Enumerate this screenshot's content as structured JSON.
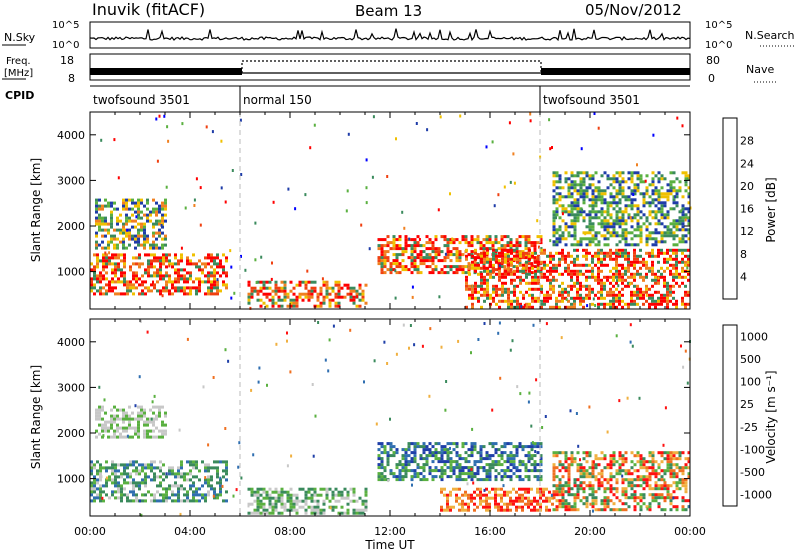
{
  "header": {
    "title": "Inuvik (fitACF)",
    "beam": "Beam 13",
    "date": "05/Nov/2012"
  },
  "aux_panels": {
    "nsky_label": "N.Sky",
    "nsky_ticks": [
      "10^5",
      "10^0"
    ],
    "nsearch_label": "N.Search",
    "nsearch_ticks": [
      "10^5",
      "10^0"
    ],
    "freq_label_1": "Freq.",
    "freq_label_2": "[MHz]",
    "freq_ticks": [
      "18",
      "8"
    ],
    "nave_label": "Nave",
    "nave_ticks": [
      "80",
      "0"
    ],
    "cpid_label": "CPID",
    "cpid_segments": [
      {
        "label": "twofsound 3501",
        "start_hour": 0,
        "end_hour": 6
      },
      {
        "label": "normal 150",
        "start_hour": 6,
        "end_hour": 18
      },
      {
        "label": "twofsound 3501",
        "start_hour": 18,
        "end_hour": 24
      }
    ]
  },
  "chart_data": [
    {
      "type": "heatmap",
      "panel": "power",
      "xlabel": "",
      "ylabel": "Slant Range [km]",
      "xlim": [
        0,
        24
      ],
      "ylim": [
        180,
        4500
      ],
      "yticks": [
        "1000",
        "2000",
        "3000",
        "4000"
      ],
      "colorbar_label": "Power [dB]",
      "colorbar_ticks": [
        "4",
        "8",
        "12",
        "16",
        "20",
        "24",
        "28"
      ],
      "colorbar_colors": [
        "#0000ff",
        "#1e3ca8",
        "#3a8a5c",
        "#5ab040",
        "#f0c000",
        "#f08020",
        "#f04010",
        "#ff0000"
      ],
      "regions": [
        {
          "t0": 0.0,
          "t1": 5.5,
          "r0": 500,
          "r1": 1400,
          "level": "strong"
        },
        {
          "t0": 0.2,
          "t1": 3.0,
          "r0": 1500,
          "r1": 2600,
          "level": "mixed"
        },
        {
          "t0": 6.3,
          "t1": 11.0,
          "r0": 250,
          "r1": 800,
          "level": "strong"
        },
        {
          "t0": 11.5,
          "t1": 18.0,
          "r0": 1000,
          "r1": 1800,
          "level": "strong"
        },
        {
          "t0": 15.0,
          "t1": 24.0,
          "r0": 250,
          "r1": 1500,
          "level": "strong"
        },
        {
          "t0": 18.5,
          "t1": 24.0,
          "r0": 1600,
          "r1": 3200,
          "level": "weak"
        }
      ]
    },
    {
      "type": "heatmap",
      "panel": "velocity",
      "xlabel": "Time UT",
      "ylabel": "Slant Range [km]",
      "xlim": [
        0,
        24
      ],
      "ylim": [
        180,
        4500
      ],
      "xticks": [
        "00:00",
        "04:00",
        "08:00",
        "12:00",
        "16:00",
        "20:00",
        "00:00"
      ],
      "yticks": [
        "1000",
        "2000",
        "3000",
        "4000"
      ],
      "colorbar_label": "Velocity [m s⁻¹]",
      "colorbar_ticks": [
        "1000",
        "500",
        "100",
        "25",
        "-25",
        "-100",
        "-500",
        "-1000"
      ],
      "colorbar_colors": [
        "#1f3fa8",
        "#2f6eb0",
        "#3a8a5c",
        "#5ab040",
        "#c8c8c8",
        "#f0b040",
        "#f07020",
        "#ff1010"
      ],
      "regions": [
        {
          "t0": 0.0,
          "t1": 5.5,
          "r0": 500,
          "r1": 1400,
          "level": "green"
        },
        {
          "t0": 0.2,
          "t1": 3.0,
          "r0": 1900,
          "r1": 2600,
          "level": "grey"
        },
        {
          "t0": 6.3,
          "t1": 11.0,
          "r0": 250,
          "r1": 800,
          "level": "grey-green"
        },
        {
          "t0": 11.5,
          "t1": 18.0,
          "r0": 1000,
          "r1": 1800,
          "level": "blue-green"
        },
        {
          "t0": 14.0,
          "t1": 18.5,
          "r0": 300,
          "r1": 800,
          "level": "orange"
        },
        {
          "t0": 18.5,
          "t1": 24.0,
          "r0": 300,
          "r1": 1600,
          "level": "mixed"
        }
      ]
    }
  ]
}
